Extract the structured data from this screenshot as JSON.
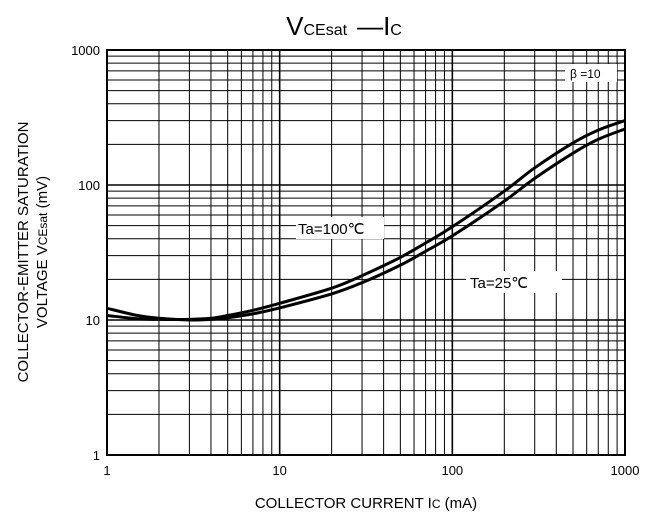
{
  "chart_data": {
    "type": "line",
    "title": {
      "main_a": "V",
      "sub_a": "CEsat",
      "dash": "—",
      "main_b": "I",
      "sub_b": "C"
    },
    "xlabel": {
      "text": "COLLECTOR CURRENT  I",
      "sub": "C",
      "unit": " (mA)"
    },
    "ylabel": {
      "line1": "COLLECTOR-EMITTER SATURATION",
      "line2_text": "VOLTAGE  V",
      "line2_sub": "CEsat",
      "line2_unit": " (mV)"
    },
    "x_scale": "log",
    "y_scale": "log",
    "xlim": [
      1,
      1000
    ],
    "ylim": [
      1,
      1000
    ],
    "x_ticks": [
      "1",
      "10",
      "100",
      "1000"
    ],
    "y_ticks": [
      "1",
      "10",
      "100",
      "1000"
    ],
    "grid": true,
    "condition_label": "β =10",
    "series": [
      {
        "name": "Ta=100℃",
        "x": [
          1,
          1.5,
          2,
          3,
          4,
          5,
          7,
          10,
          20,
          30,
          50,
          70,
          100,
          200,
          300,
          500,
          700,
          1000
        ],
        "y": [
          10.8,
          10.2,
          10.1,
          10.1,
          10.3,
          10.8,
          11.8,
          13.3,
          17.2,
          21.3,
          29.1,
          37.2,
          49,
          90,
          134,
          205,
          255,
          300
        ]
      },
      {
        "name": "Ta=25℃",
        "x": [
          1,
          1.5,
          2,
          3,
          4,
          5,
          7,
          10,
          20,
          30,
          50,
          70,
          100,
          200,
          300,
          500,
          700,
          1000
        ],
        "y": [
          12.2,
          10.8,
          10.3,
          10.0,
          10.1,
          10.4,
          11.1,
          12.3,
          15.6,
          18.9,
          25.5,
          32.3,
          42,
          76,
          112,
          172,
          218,
          260
        ]
      }
    ]
  }
}
